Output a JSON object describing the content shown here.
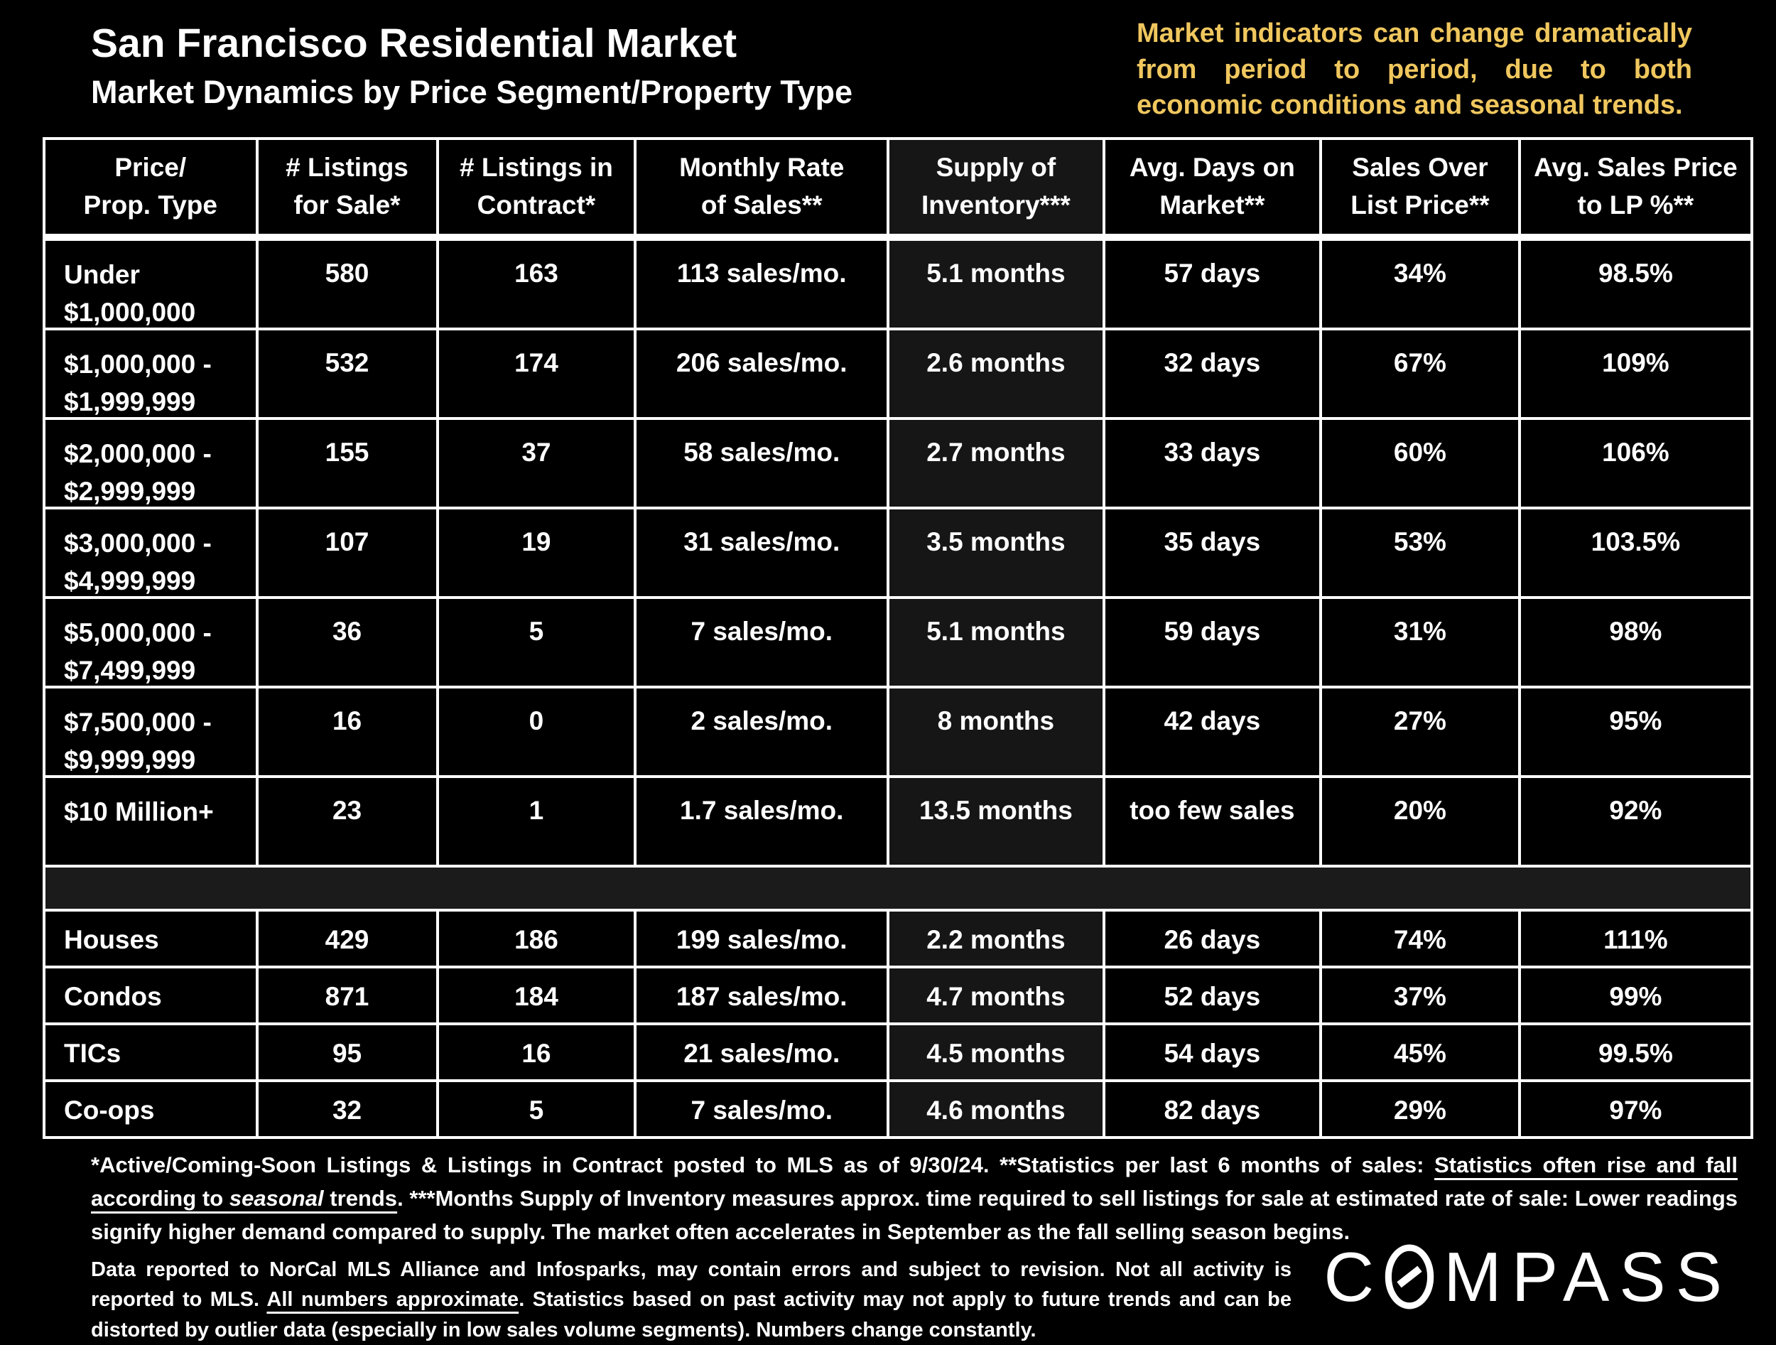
{
  "slide": {
    "title": "San Francisco Residential Market",
    "subtitle": "Market Dynamics by Price Segment/Property Type",
    "note": "Market indicators can change dramatically from period to period, due to both economic conditions and seasonal trends.",
    "colors": {
      "background": "#000000",
      "text": "#FFFFFF",
      "note_accent": "#F0C75E",
      "grid_lines": "#FFFFFF",
      "supply_column_shade": "#161616"
    }
  },
  "table": {
    "columns": [
      "Price/\nProp. Type",
      "# Listings\nfor Sale*",
      "# Listings in\nContract*",
      "Monthly Rate\nof Sales**",
      "Supply of\nInventory***",
      "Avg. Days on\nMarket**",
      "Sales Over\nList Price**",
      "Avg. Sales Price\nto LP %**"
    ],
    "price_rows": [
      {
        "label": "Under\n$1,000,000",
        "cells": [
          "580",
          "163",
          "113 sales/mo.",
          "5.1 months",
          "57 days",
          "34%",
          "98.5%"
        ]
      },
      {
        "label": "$1,000,000 -\n$1,999,999",
        "cells": [
          "532",
          "174",
          "206 sales/mo.",
          "2.6 months",
          "32 days",
          "67%",
          "109%"
        ]
      },
      {
        "label": "$2,000,000 -\n$2,999,999",
        "cells": [
          "155",
          "37",
          "58 sales/mo.",
          "2.7 months",
          "33 days",
          "60%",
          "106%"
        ]
      },
      {
        "label": "$3,000,000 -\n$4,999,999",
        "cells": [
          "107",
          "19",
          "31 sales/mo.",
          "3.5 months",
          "35 days",
          "53%",
          "103.5%"
        ]
      },
      {
        "label": "$5,000,000 -\n$7,499,999",
        "cells": [
          "36",
          "5",
          "7 sales/mo.",
          "5.1 months",
          "59 days",
          "31%",
          "98%"
        ]
      },
      {
        "label": "$7,500,000 -\n$9,999,999",
        "cells": [
          "16",
          "0",
          "2 sales/mo.",
          "8 months",
          "42 days",
          "27%",
          "95%"
        ]
      },
      {
        "label": "$10 Million+",
        "cells": [
          "23",
          "1",
          "1.7 sales/mo.",
          "13.5 months",
          "too few sales",
          "20%",
          "92%"
        ]
      }
    ],
    "property_rows": [
      {
        "label": "Houses",
        "cells": [
          "429",
          "186",
          "199 sales/mo.",
          "2.2 months",
          "26 days",
          "74%",
          "111%"
        ]
      },
      {
        "label": "Condos",
        "cells": [
          "871",
          "184",
          "187 sales/mo.",
          "4.7 months",
          "52 days",
          "37%",
          "99%"
        ]
      },
      {
        "label": "TICs",
        "cells": [
          "95",
          "16",
          "21 sales/mo.",
          "4.5 months",
          "54 days",
          "45%",
          "99.5%"
        ]
      },
      {
        "label": "Co-ops",
        "cells": [
          "32",
          "5",
          "7 sales/mo.",
          "4.6 months",
          "82 days",
          "29%",
          "97%"
        ]
      }
    ]
  },
  "footnotes": {
    "para1": [
      {
        "text": "*Active/Coming-Soon Listings & Listings in Contract posted to MLS as of 9/30/24. **Statistics per last 6 months of sales: "
      },
      {
        "text": "Statistics often rise and fall according to ",
        "underline": true
      },
      {
        "text": "seasonal",
        "underline": true,
        "italic": true
      },
      {
        "text": " trends",
        "underline": true
      },
      {
        "text": ".  ***Months Supply of Inventory measures approx. time required to sell listings for sale at estimated rate of sale:  Lower readings signify higher demand compared to supply. The market often accelerates in September as the fall selling season begins."
      }
    ],
    "para2": [
      {
        "text": "Data reported to NorCal MLS Alliance and Infosparks, may contain errors and subject to revision.  Not all activity is reported to MLS. "
      },
      {
        "text": "All numbers approximate",
        "underline": true
      },
      {
        "text": ". Statistics based on past activity may not apply to future trends and can be distorted by outlier data (especially in low sales volume segments). Numbers change constantly."
      }
    ]
  },
  "logo": {
    "first": "C",
    "rest": "MPASS",
    "full_text": "COMPASS"
  }
}
